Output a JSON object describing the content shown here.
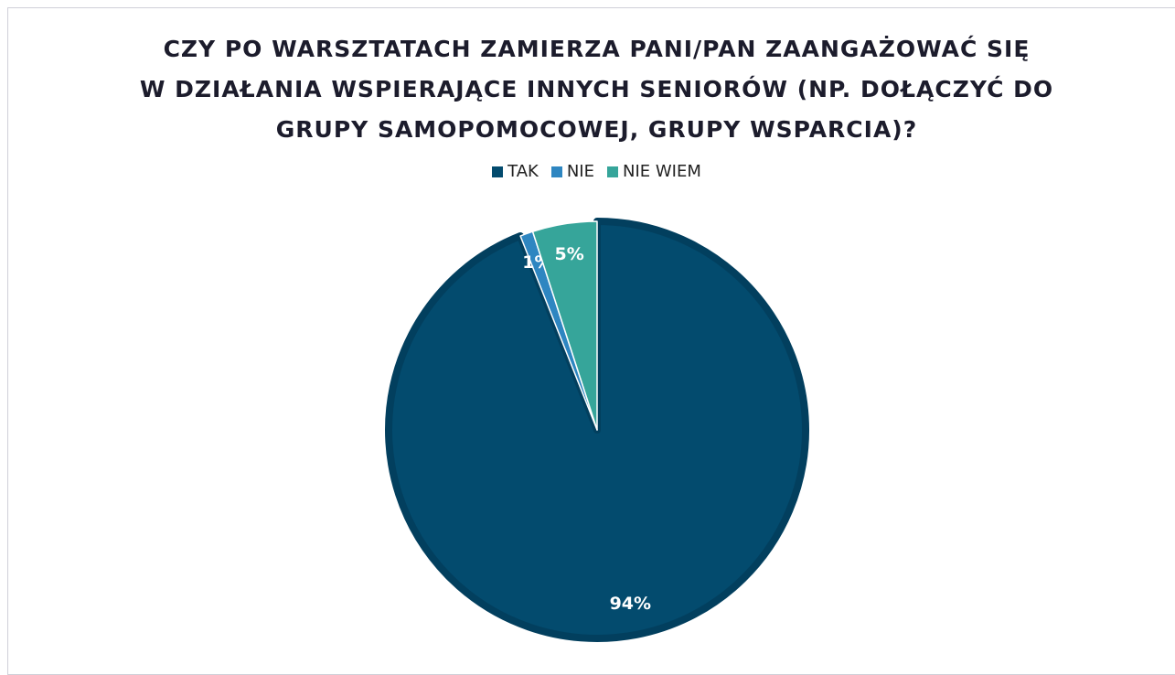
{
  "chart_data": {
    "type": "pie",
    "title": [
      "CZY PO WARSZTATACH ZAMIERZA PANI/PAN ZAANGAŻOWAĆ SIĘ",
      "W DZIAŁANIA WSPIERAJĄCE INNYCH SENIORÓW (NP. DOŁĄCZYĆ DO",
      "GRUPY SAMOPOMOCOWEJ, GRUPY WSPARCIA)?"
    ],
    "categories": [
      "TAK",
      "NIE",
      "NIE WIEM"
    ],
    "values": [
      94,
      1,
      5
    ],
    "value_labels": [
      "94%",
      "1%",
      "5%"
    ],
    "colors": [
      "#034b6e",
      "#2e86c1",
      "#36a59a"
    ],
    "legend": "top"
  }
}
